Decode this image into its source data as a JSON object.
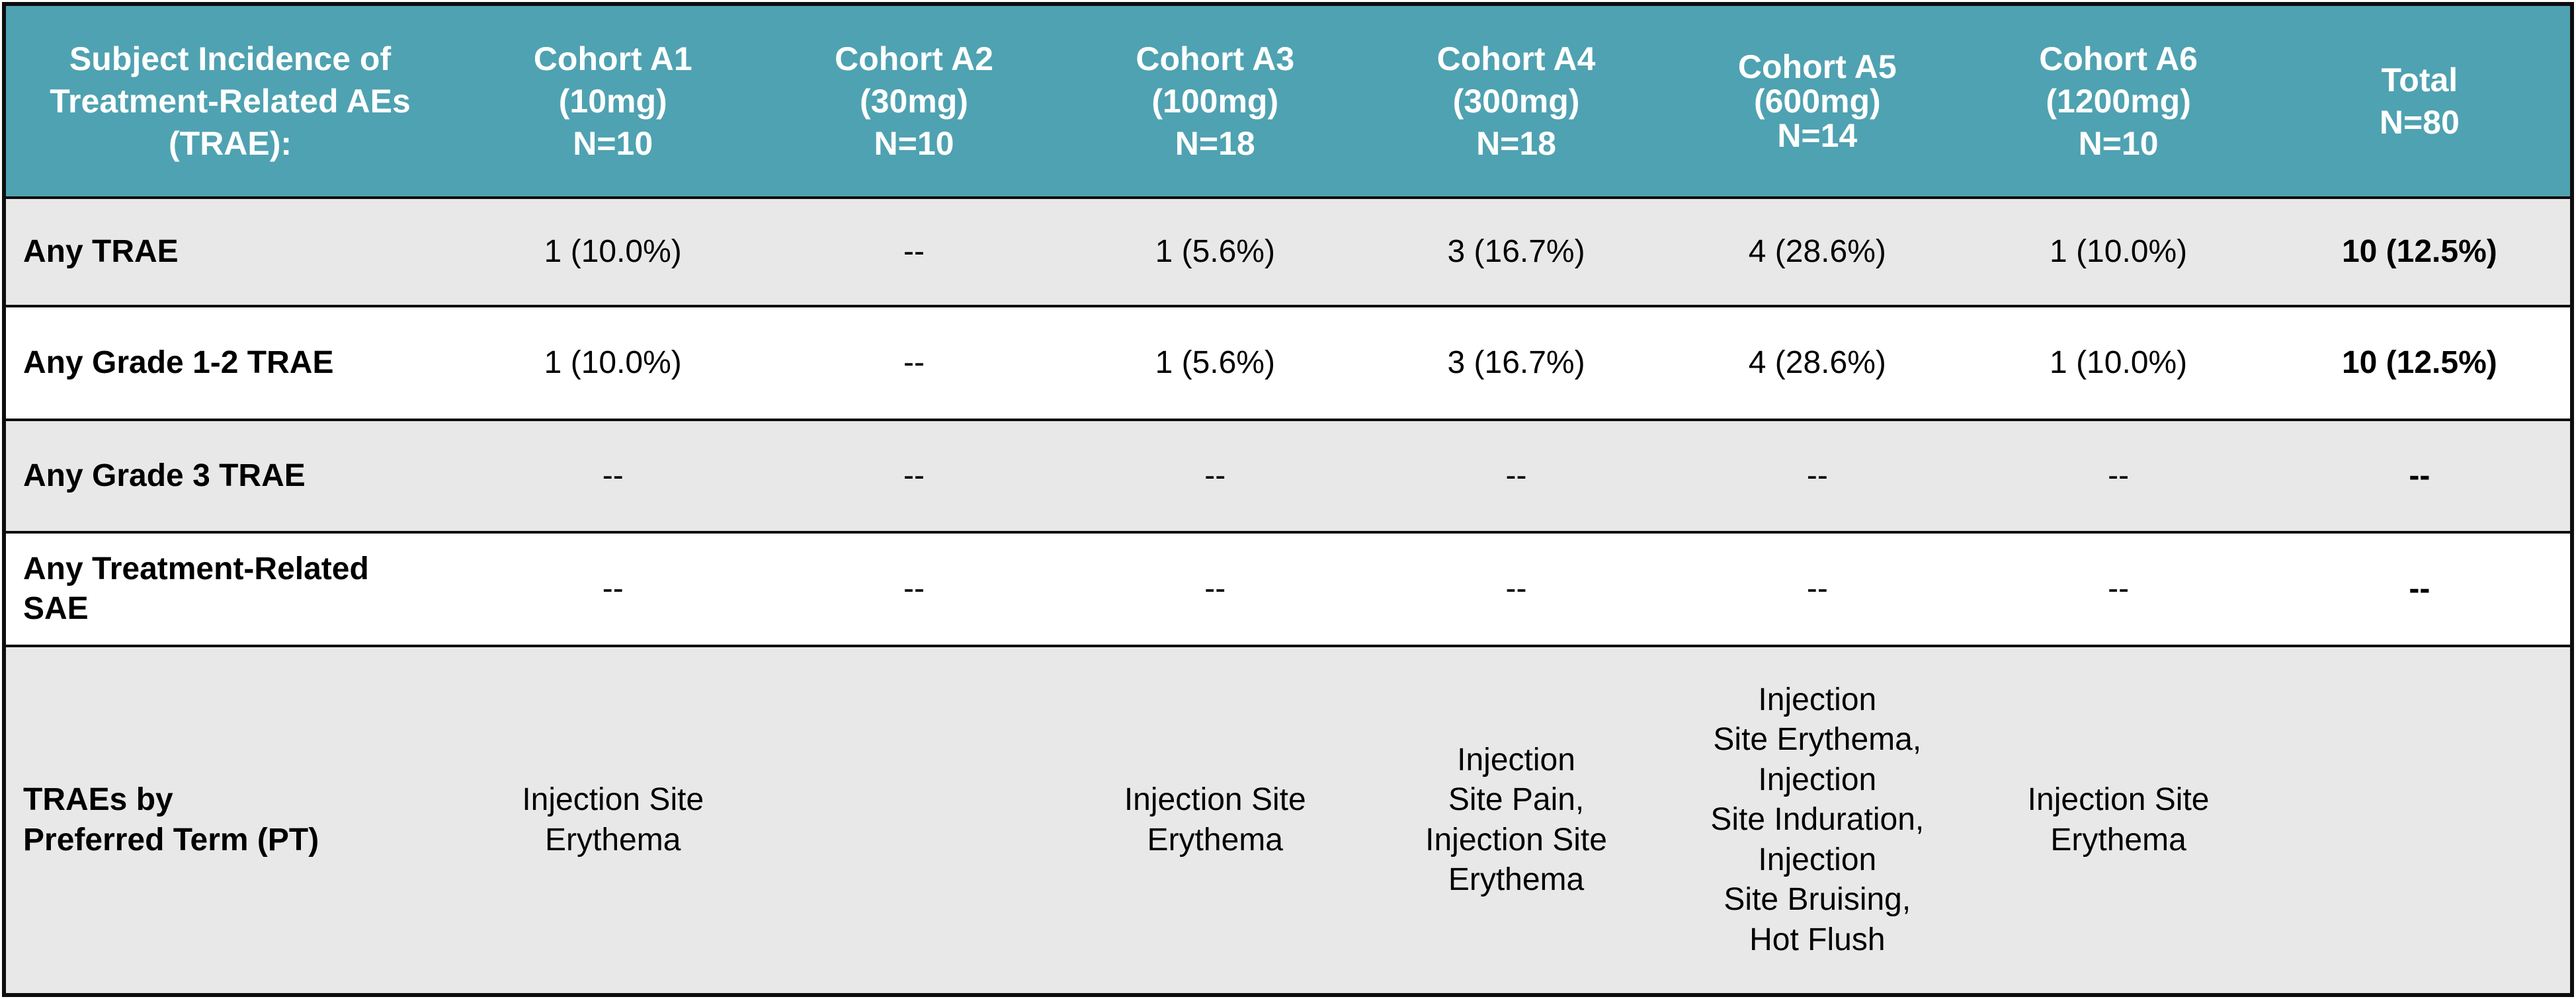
{
  "chart_data": {
    "type": "table",
    "title": "Subject Incidence of Treatment-Related AEs (TRAE):",
    "columns": [
      "Cohort A1 (10mg) N=10",
      "Cohort A2 (30mg) N=10",
      "Cohort A3 (100mg) N=18",
      "Cohort A4 (300mg) N=18",
      "Cohort A5 (600mg) N=14",
      "Cohort A6 (1200mg) N=10",
      "Total N=80"
    ],
    "rows": [
      {
        "label": "Any TRAE",
        "values": [
          "1 (10.0%)",
          "--",
          "1 (5.6%)",
          "3 (16.7%)",
          "4 (28.6%)",
          "1 (10.0%)",
          "10 (12.5%)"
        ]
      },
      {
        "label": "Any Grade 1-2 TRAE",
        "values": [
          "1 (10.0%)",
          "--",
          "1 (5.6%)",
          "3 (16.7%)",
          "4 (28.6%)",
          "1 (10.0%)",
          "10 (12.5%)"
        ]
      },
      {
        "label": "Any Grade 3 TRAE",
        "values": [
          "--",
          "--",
          "--",
          "--",
          "--",
          "--",
          "--"
        ]
      },
      {
        "label": "Any Treatment-Related SAE",
        "values": [
          "--",
          "--",
          "--",
          "--",
          "--",
          "--",
          "--"
        ]
      },
      {
        "label": "TRAEs by Preferred Term (PT)",
        "values": [
          "Injection Site Erythema",
          "",
          "Injection Site Erythema",
          "Injection Site Pain, Injection Site Erythema",
          "Injection Site Erythema, Injection Site Induration, Injection Site Bruising, Hot Flush",
          "Injection Site Erythema",
          ""
        ]
      }
    ],
    "colors": {
      "header_bg": "#4FA2B1",
      "header_text": "#FFFFFF",
      "shaded_row_bg": "#E8E8E9",
      "plain_row_bg": "#FFFFFF",
      "border": "#0D0D0D",
      "body_text": "#000000"
    }
  },
  "table": {
    "header": {
      "row_label": "Subject Incidence of\nTreatment-Related AEs\n(TRAE):",
      "columns": [
        {
          "label": "Cohort A1\n(10mg)\nN=10"
        },
        {
          "label": "Cohort A2\n(30mg)\nN=10"
        },
        {
          "label": "Cohort A3\n(100mg)\nN=18"
        },
        {
          "label": "Cohort A4\n(300mg)\nN=18"
        },
        {
          "label": "Cohort A5\n(600mg)\nN=14"
        },
        {
          "label": "Cohort A6\n(1200mg)\nN=10"
        },
        {
          "label": "Total\nN=80"
        }
      ]
    },
    "rows": [
      {
        "label": "Any TRAE",
        "values": [
          "1 (10.0%)",
          "--",
          "1 (5.6%)",
          "3 (16.7%)",
          "4 (28.6%)",
          "1 (10.0%)",
          "10 (12.5%)"
        ]
      },
      {
        "label": "Any Grade 1-2 TRAE",
        "values": [
          "1 (10.0%)",
          "--",
          "1 (5.6%)",
          "3 (16.7%)",
          "4 (28.6%)",
          "1 (10.0%)",
          "10 (12.5%)"
        ]
      },
      {
        "label": "Any Grade 3 TRAE",
        "values": [
          "--",
          "--",
          "--",
          "--",
          "--",
          "--",
          "--"
        ]
      },
      {
        "label": "Any Treatment-Related\nSAE",
        "values": [
          "--",
          "--",
          "--",
          "--",
          "--",
          "--",
          "--"
        ]
      },
      {
        "label": "TRAEs by\nPreferred Term (PT)",
        "values": [
          "Injection Site\nErythema",
          "",
          "Injection Site\nErythema",
          "Injection\nSite Pain,\nInjection Site\nErythema",
          "Injection\nSite Erythema,\nInjection\nSite Induration,\nInjection\nSite Bruising,\nHot Flush",
          "Injection Site\nErythema",
          ""
        ]
      }
    ]
  }
}
